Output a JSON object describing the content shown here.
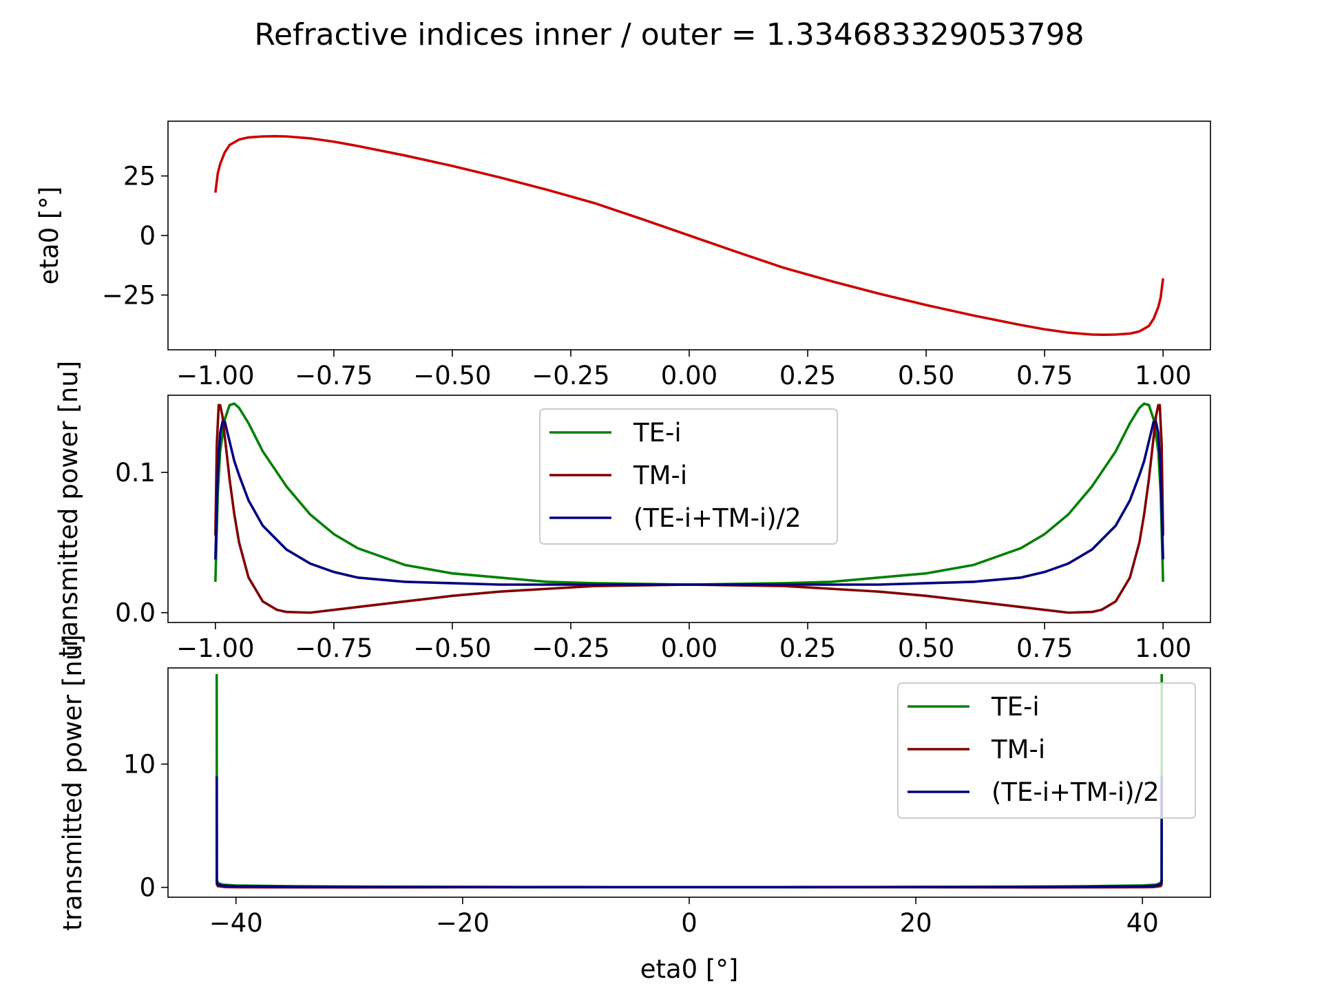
{
  "figure": {
    "title": "Refractive indices inner / outer = 1.334683329053798"
  },
  "colors": {
    "te": "#008000",
    "tm": "#800000",
    "avg": "#000080",
    "eta": "#cc0000"
  },
  "chart_data": [
    {
      "type": "line",
      "title": "",
      "xlabel": "",
      "ylabel": "eta0 [°]",
      "xlim": [
        -1.1,
        1.1
      ],
      "ylim": [
        -48,
        48
      ],
      "xticks": [
        -1.0,
        -0.75,
        -0.5,
        -0.25,
        0.0,
        0.25,
        0.5,
        0.75,
        1.0
      ],
      "xtick_labels": [
        "−1.00",
        "−0.75",
        "−0.50",
        "−0.25",
        "0.00",
        "0.25",
        "0.50",
        "0.75",
        "1.00"
      ],
      "yticks": [
        25,
        0,
        -25
      ],
      "ytick_labels": [
        "25",
        "0",
        "−25"
      ],
      "grid": false,
      "legend": null,
      "series": [
        {
          "x": [
            -1.0,
            -0.995,
            -0.99,
            -0.98,
            -0.97,
            -0.95,
            -0.93,
            -0.9,
            -0.875,
            -0.85,
            -0.8,
            -0.75,
            -0.7,
            -0.6,
            -0.5,
            -0.4,
            -0.3,
            -0.2,
            -0.1,
            0.0,
            0.1,
            0.2,
            0.3,
            0.4,
            0.5,
            0.6,
            0.7,
            0.75,
            0.8,
            0.85,
            0.875,
            0.9,
            0.93,
            0.95,
            0.97,
            0.98,
            0.99,
            0.995,
            1.0
          ],
          "y": [
            18,
            26,
            30,
            35,
            38,
            40.3,
            41.2,
            41.6,
            41.7,
            41.6,
            40.8,
            39.4,
            37.6,
            33.6,
            29.2,
            24.4,
            19.2,
            13.6,
            6.9,
            0,
            -6.9,
            -13.6,
            -19.2,
            -24.4,
            -29.2,
            -33.6,
            -37.6,
            -39.4,
            -40.8,
            -41.6,
            -41.7,
            -41.6,
            -41.2,
            -40.3,
            -38,
            -35,
            -30,
            -26,
            -18
          ],
          "color": "#cc0000"
        }
      ]
    },
    {
      "type": "line",
      "title": "",
      "xlabel": "",
      "ylabel": "transmitted power [nu]",
      "xlim": [
        -1.1,
        1.1
      ],
      "ylim": [
        -0.007,
        0.155
      ],
      "xticks": [
        -1.0,
        -0.75,
        -0.5,
        -0.25,
        0.0,
        0.25,
        0.5,
        0.75,
        1.0
      ],
      "xtick_labels": [
        "−1.00",
        "−0.75",
        "−0.50",
        "−0.25",
        "0.00",
        "0.25",
        "0.50",
        "0.75",
        "1.00"
      ],
      "yticks": [
        0.1,
        0.0
      ],
      "ytick_labels": [
        "0.1",
        "0.0"
      ],
      "grid": false,
      "legend": "upper center",
      "series": [
        {
          "name": "TE-i",
          "x": [
            -1.0,
            -0.995,
            -0.99,
            -0.98,
            -0.97,
            -0.96,
            -0.95,
            -0.93,
            -0.9,
            -0.85,
            -0.8,
            -0.75,
            -0.7,
            -0.6,
            -0.5,
            -0.4,
            -0.3,
            -0.2,
            0.0,
            0.2,
            0.3,
            0.4,
            0.5,
            0.6,
            0.7,
            0.75,
            0.8,
            0.85,
            0.9,
            0.93,
            0.95,
            0.96,
            0.97,
            0.98,
            0.99,
            0.995,
            1.0
          ],
          "y": [
            0.022,
            0.085,
            0.115,
            0.138,
            0.148,
            0.149,
            0.146,
            0.135,
            0.115,
            0.09,
            0.07,
            0.056,
            0.046,
            0.034,
            0.028,
            0.025,
            0.022,
            0.021,
            0.02,
            0.021,
            0.022,
            0.025,
            0.028,
            0.034,
            0.046,
            0.056,
            0.07,
            0.09,
            0.115,
            0.135,
            0.146,
            0.149,
            0.148,
            0.138,
            0.115,
            0.085,
            0.022
          ],
          "color": "#008000"
        },
        {
          "name": "TM-i",
          "x": [
            -1.0,
            -0.997,
            -0.993,
            -0.99,
            -0.985,
            -0.98,
            -0.97,
            -0.96,
            -0.95,
            -0.93,
            -0.9,
            -0.87,
            -0.85,
            -0.8,
            -0.75,
            -0.7,
            -0.6,
            -0.5,
            -0.4,
            -0.3,
            -0.2,
            0.0,
            0.2,
            0.3,
            0.4,
            0.5,
            0.6,
            0.7,
            0.75,
            0.8,
            0.85,
            0.87,
            0.9,
            0.93,
            0.95,
            0.96,
            0.97,
            0.98,
            0.985,
            0.99,
            0.993,
            0.997,
            1.0
          ],
          "y": [
            0.055,
            0.12,
            0.148,
            0.148,
            0.14,
            0.125,
            0.095,
            0.07,
            0.05,
            0.025,
            0.008,
            0.002,
            0.0005,
            0.0,
            0.002,
            0.004,
            0.008,
            0.012,
            0.015,
            0.017,
            0.019,
            0.02,
            0.019,
            0.017,
            0.015,
            0.012,
            0.008,
            0.004,
            0.002,
            0.0,
            0.0005,
            0.002,
            0.008,
            0.025,
            0.05,
            0.07,
            0.095,
            0.125,
            0.14,
            0.148,
            0.148,
            0.12,
            0.055
          ],
          "color": "#800000"
        },
        {
          "name": "(TE-i+TM-i)/2",
          "x": [
            -1.0,
            -0.995,
            -0.99,
            -0.985,
            -0.98,
            -0.97,
            -0.96,
            -0.95,
            -0.93,
            -0.9,
            -0.85,
            -0.8,
            -0.75,
            -0.7,
            -0.6,
            -0.5,
            -0.4,
            -0.2,
            0.0,
            0.2,
            0.4,
            0.5,
            0.6,
            0.7,
            0.75,
            0.8,
            0.85,
            0.9,
            0.93,
            0.95,
            0.96,
            0.97,
            0.98,
            0.985,
            0.99,
            0.995,
            1.0
          ],
          "y": [
            0.038,
            0.1,
            0.128,
            0.136,
            0.136,
            0.122,
            0.108,
            0.098,
            0.08,
            0.062,
            0.045,
            0.035,
            0.029,
            0.025,
            0.022,
            0.021,
            0.02,
            0.02,
            0.02,
            0.02,
            0.02,
            0.021,
            0.022,
            0.025,
            0.029,
            0.035,
            0.045,
            0.062,
            0.08,
            0.098,
            0.108,
            0.122,
            0.136,
            0.136,
            0.128,
            0.1,
            0.038
          ],
          "color": "#000080"
        }
      ]
    },
    {
      "type": "line",
      "title": "",
      "xlabel": "eta0 [°]",
      "ylabel": "transmitted power [nu]",
      "xlim": [
        -46,
        46
      ],
      "ylim": [
        -0.8,
        17.8
      ],
      "xticks": [
        -40,
        -20,
        0,
        20,
        40
      ],
      "xtick_labels": [
        "−40",
        "−20",
        "0",
        "20",
        "40"
      ],
      "yticks": [
        10,
        0
      ],
      "ytick_labels": [
        "10",
        "0"
      ],
      "grid": false,
      "legend": "upper right",
      "series": [
        {
          "name": "TE-i",
          "x": [
            -41.7,
            -41.69,
            -41.6,
            -41.2,
            -40,
            -35,
            -30,
            -20,
            -10,
            0,
            10,
            20,
            30,
            35,
            40,
            41.2,
            41.6,
            41.69,
            41.7
          ],
          "y": [
            17.3,
            0.6,
            0.35,
            0.22,
            0.15,
            0.09,
            0.06,
            0.035,
            0.025,
            0.02,
            0.025,
            0.035,
            0.06,
            0.09,
            0.15,
            0.22,
            0.35,
            0.6,
            17.3
          ],
          "color": "#008000"
        },
        {
          "name": "TM-i",
          "x": [
            -41.7,
            -41.69,
            -41.6,
            -41,
            -40,
            -30,
            -20,
            0,
            20,
            30,
            40,
            41,
            41.6,
            41.69,
            41.7
          ],
          "y": [
            0.7,
            0.25,
            0.1,
            0.03,
            0.01,
            0.0,
            0.01,
            0.02,
            0.01,
            0.0,
            0.01,
            0.03,
            0.1,
            0.25,
            0.7
          ],
          "color": "#800000"
        },
        {
          "name": "(TE-i+TM-i)/2",
          "x": [
            -41.7,
            -41.69,
            -41.6,
            -41.2,
            -40,
            -35,
            -30,
            -20,
            -10,
            0,
            10,
            20,
            30,
            35,
            40,
            41.2,
            41.6,
            41.69,
            41.7
          ],
          "y": [
            9.0,
            0.45,
            0.25,
            0.14,
            0.09,
            0.05,
            0.035,
            0.025,
            0.021,
            0.02,
            0.021,
            0.025,
            0.035,
            0.05,
            0.09,
            0.14,
            0.25,
            0.45,
            9.0
          ],
          "color": "#000080"
        }
      ]
    }
  ]
}
